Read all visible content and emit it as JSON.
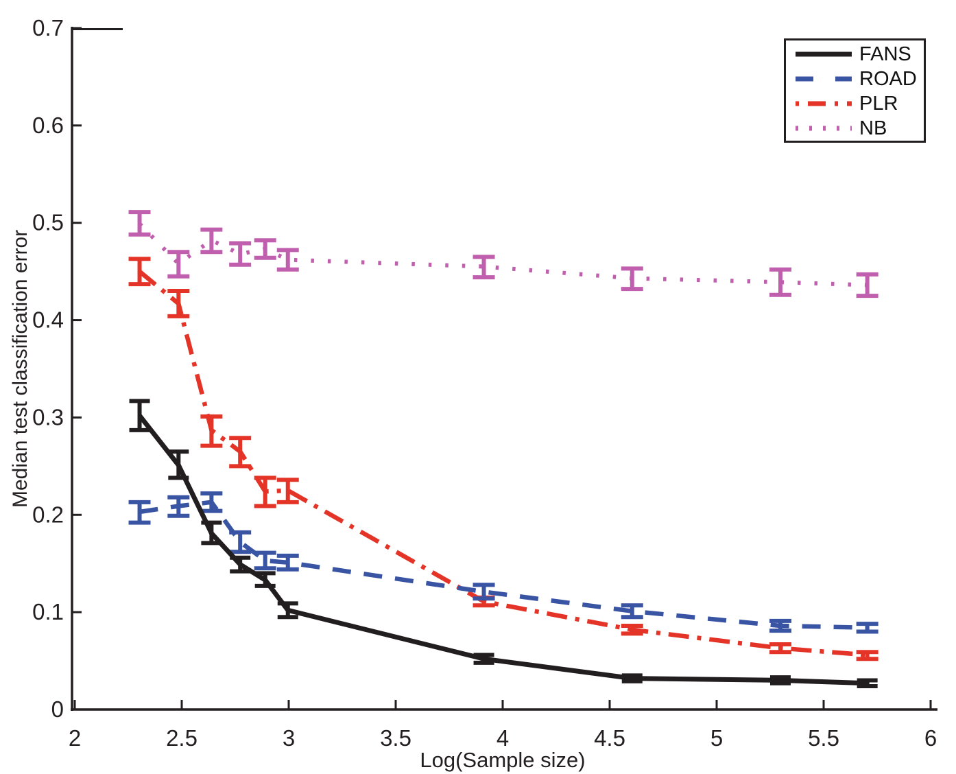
{
  "chart_data": {
    "type": "line",
    "title": "",
    "xlabel": "Log(Sample size)",
    "ylabel": "Median test classification error",
    "xlim": [
      2,
      6
    ],
    "ylim": [
      0,
      0.7
    ],
    "grid": false,
    "legend_position": "top-right",
    "x_tick_labels": [
      "2",
      "2.5",
      "3",
      "3.5",
      "4",
      "4.5",
      "5",
      "5.5",
      "6"
    ],
    "x_tick_values": [
      2,
      2.5,
      3,
      3.5,
      4,
      4.5,
      5,
      5.5,
      6
    ],
    "y_tick_labels": [
      "0",
      "0.1",
      "0.2",
      "0.3",
      "0.4",
      "0.5",
      "0.6",
      "0.7"
    ],
    "y_tick_values": [
      0,
      0.1,
      0.2,
      0.3,
      0.4,
      0.5,
      0.6,
      0.7
    ],
    "x": [
      2.303,
      2.485,
      2.639,
      2.773,
      2.89,
      2.996,
      3.912,
      4.605,
      5.298,
      5.704
    ],
    "series": [
      {
        "name": "FANS",
        "color": "#221e1f",
        "style": "solid",
        "y": [
          0.302,
          0.251,
          0.181,
          0.149,
          0.133,
          0.102,
          0.052,
          0.032,
          0.03,
          0.027
        ],
        "y_lo": [
          0.287,
          0.238,
          0.171,
          0.142,
          0.127,
          0.095,
          0.048,
          0.029,
          0.027,
          0.024
        ],
        "y_hi": [
          0.317,
          0.265,
          0.192,
          0.156,
          0.14,
          0.109,
          0.056,
          0.035,
          0.033,
          0.03
        ]
      },
      {
        "name": "ROAD",
        "color": "#3a54a4",
        "style": "dashed",
        "y": [
          0.203,
          0.209,
          0.213,
          0.172,
          0.153,
          0.151,
          0.121,
          0.101,
          0.086,
          0.084
        ],
        "y_lo": [
          0.192,
          0.199,
          0.204,
          0.162,
          0.145,
          0.144,
          0.114,
          0.095,
          0.081,
          0.08
        ],
        "y_hi": [
          0.213,
          0.218,
          0.222,
          0.182,
          0.161,
          0.158,
          0.128,
          0.107,
          0.091,
          0.088
        ]
      },
      {
        "name": "PLR",
        "color": "#e43428",
        "style": "dashdot",
        "y": [
          0.45,
          0.417,
          0.287,
          0.265,
          0.224,
          0.225,
          0.111,
          0.082,
          0.063,
          0.056
        ],
        "y_lo": [
          0.437,
          0.404,
          0.271,
          0.25,
          0.209,
          0.213,
          0.107,
          0.078,
          0.059,
          0.052
        ],
        "y_hi": [
          0.463,
          0.43,
          0.301,
          0.279,
          0.238,
          0.236,
          0.115,
          0.086,
          0.067,
          0.059
        ]
      },
      {
        "name": "NB",
        "color": "#c05fae",
        "style": "dotted",
        "y": [
          0.499,
          0.458,
          0.482,
          0.468,
          0.473,
          0.462,
          0.455,
          0.443,
          0.439,
          0.436
        ],
        "y_lo": [
          0.488,
          0.445,
          0.47,
          0.457,
          0.464,
          0.452,
          0.444,
          0.432,
          0.426,
          0.425
        ],
        "y_hi": [
          0.511,
          0.47,
          0.493,
          0.479,
          0.482,
          0.472,
          0.465,
          0.453,
          0.452,
          0.447
        ]
      }
    ]
  }
}
